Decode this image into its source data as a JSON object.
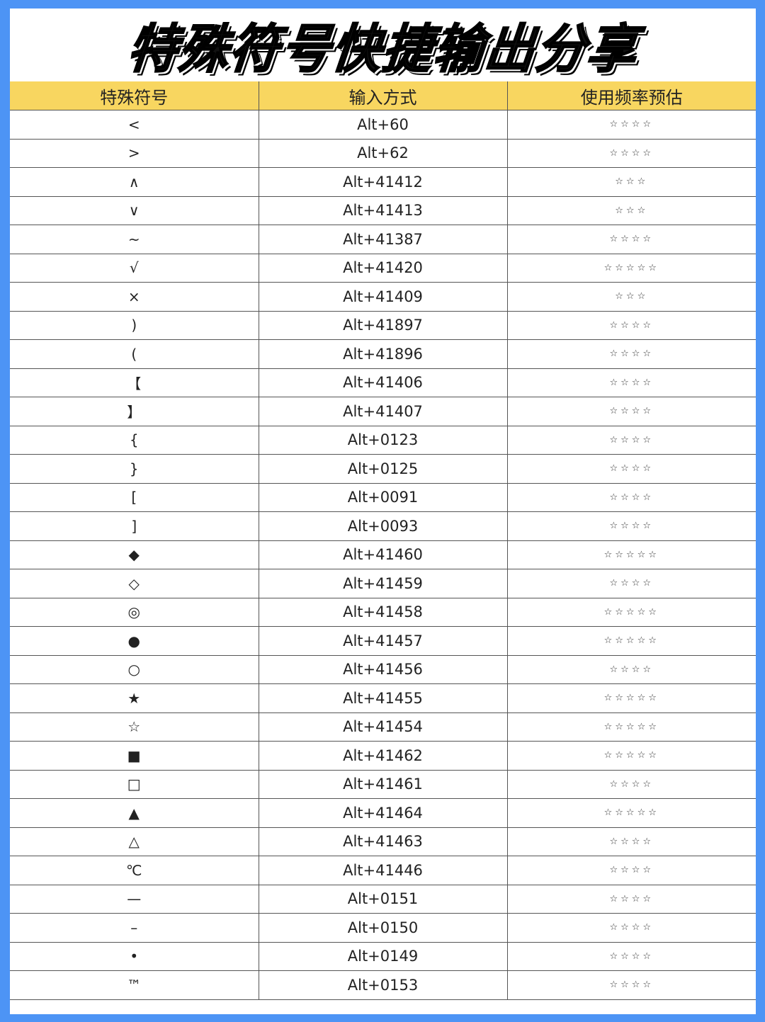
{
  "title": "特殊符号快捷输出分享",
  "table": {
    "headers": [
      "特殊符号",
      "输入方式",
      "使用频率预估"
    ],
    "rows": [
      {
        "symbol": "<",
        "input": "Alt+60",
        "rating": "☆☆☆☆"
      },
      {
        "symbol": ">",
        "input": "Alt+62",
        "rating": "☆☆☆☆"
      },
      {
        "symbol": "∧",
        "input": "Alt+41412",
        "rating": "☆☆☆"
      },
      {
        "symbol": "∨",
        "input": "Alt+41413",
        "rating": "☆☆☆"
      },
      {
        "symbol": "~",
        "input": "Alt+41387",
        "rating": "☆☆☆☆"
      },
      {
        "symbol": "√",
        "input": "Alt+41420",
        "rating": "☆☆☆☆☆"
      },
      {
        "symbol": "×",
        "input": "Alt+41409",
        "rating": "☆☆☆"
      },
      {
        "symbol": ")",
        "input": "Alt+41897",
        "rating": "☆☆☆☆"
      },
      {
        "symbol": "(",
        "input": "Alt+41896",
        "rating": "☆☆☆☆"
      },
      {
        "symbol": "【",
        "input": "Alt+41406",
        "rating": "☆☆☆☆"
      },
      {
        "symbol": "】",
        "input": "Alt+41407",
        "rating": "☆☆☆☆"
      },
      {
        "symbol": "{",
        "input": "Alt+0123",
        "rating": "☆☆☆☆"
      },
      {
        "symbol": "}",
        "input": "Alt+0125",
        "rating": "☆☆☆☆"
      },
      {
        "symbol": "[",
        "input": "Alt+0091",
        "rating": "☆☆☆☆"
      },
      {
        "symbol": "]",
        "input": "Alt+0093",
        "rating": "☆☆☆☆"
      },
      {
        "symbol": "◆",
        "input": "Alt+41460",
        "rating": "☆☆☆☆☆"
      },
      {
        "symbol": "◇",
        "input": "Alt+41459",
        "rating": "☆☆☆☆"
      },
      {
        "symbol": "◎",
        "input": "Alt+41458",
        "rating": "☆☆☆☆☆"
      },
      {
        "symbol": "●",
        "input": "Alt+41457",
        "rating": "☆☆☆☆☆"
      },
      {
        "symbol": "○",
        "input": "Alt+41456",
        "rating": "☆☆☆☆"
      },
      {
        "symbol": "★",
        "input": "Alt+41455",
        "rating": "☆☆☆☆☆"
      },
      {
        "symbol": "☆",
        "input": "Alt+41454",
        "rating": "☆☆☆☆☆"
      },
      {
        "symbol": "■",
        "input": "Alt+41462",
        "rating": "☆☆☆☆☆"
      },
      {
        "symbol": "□",
        "input": "Alt+41461",
        "rating": "☆☆☆☆"
      },
      {
        "symbol": "▲",
        "input": "Alt+41464",
        "rating": "☆☆☆☆☆"
      },
      {
        "symbol": "△",
        "input": "Alt+41463",
        "rating": "☆☆☆☆"
      },
      {
        "symbol": "℃",
        "input": "Alt+41446",
        "rating": "☆☆☆☆"
      },
      {
        "symbol": "—",
        "input": "Alt+0151",
        "rating": "☆☆☆☆"
      },
      {
        "symbol": "–",
        "input": "Alt+0150",
        "rating": "☆☆☆☆"
      },
      {
        "symbol": "•",
        "input": "Alt+0149",
        "rating": "☆☆☆☆"
      },
      {
        "symbol": "™",
        "input": "Alt+0153",
        "rating": "☆☆☆☆"
      }
    ]
  },
  "colors": {
    "border": "#4d94f5",
    "header": "#f8d660"
  }
}
